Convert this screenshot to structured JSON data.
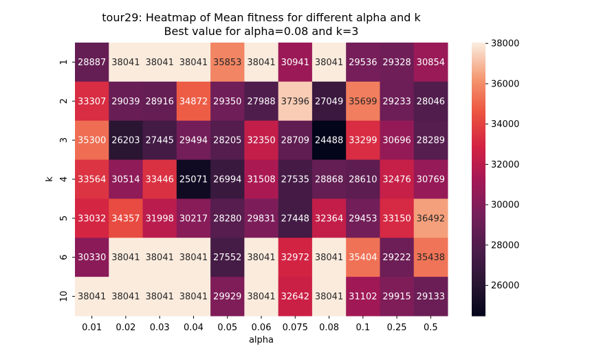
{
  "chart_data": {
    "type": "heatmap",
    "title": "tour29: Heatmap of Mean fitness for different alpha and k",
    "subtitle": "Best value for alpha=0.08 and k=3",
    "xlabel": "alpha",
    "ylabel": "k",
    "x_categories": [
      "0.01",
      "0.02",
      "0.03",
      "0.04",
      "0.05",
      "0.06",
      "0.075",
      "0.08",
      "0.1",
      "0.25",
      "0.5"
    ],
    "y_categories": [
      "1",
      "2",
      "3",
      "4",
      "5",
      "6",
      "10"
    ],
    "values": [
      [
        28887,
        38041,
        38041,
        38041,
        35853,
        38041,
        30941,
        38041,
        29536,
        29328,
        30854
      ],
      [
        33307,
        29039,
        28916,
        34872,
        29350,
        27988,
        37396,
        27049,
        35699,
        29233,
        28046
      ],
      [
        35300,
        26203,
        27445,
        29494,
        28205,
        32350,
        28709,
        24488,
        33299,
        30696,
        28289
      ],
      [
        33564,
        30514,
        33446,
        25071,
        26994,
        31508,
        27535,
        28868,
        28610,
        32476,
        30769
      ],
      [
        33032,
        34357,
        31998,
        30217,
        28280,
        29831,
        27448,
        32364,
        29453,
        33150,
        36492
      ],
      [
        30330,
        38041,
        38041,
        38041,
        27552,
        38041,
        32972,
        38041,
        35404,
        29222,
        35438
      ],
      [
        38041,
        38041,
        38041,
        38041,
        29929,
        38041,
        32642,
        38041,
        31102,
        29915,
        29133
      ]
    ],
    "colorscale": "rocket",
    "vmin": 24488,
    "vmax": 38041,
    "colorbar_ticks": [
      26000,
      28000,
      30000,
      32000,
      34000,
      36000,
      38000
    ],
    "colorbar_tick_labels": [
      "26000",
      "28000",
      "30000",
      "32000",
      "34000",
      "36000",
      "38000"
    ]
  }
}
